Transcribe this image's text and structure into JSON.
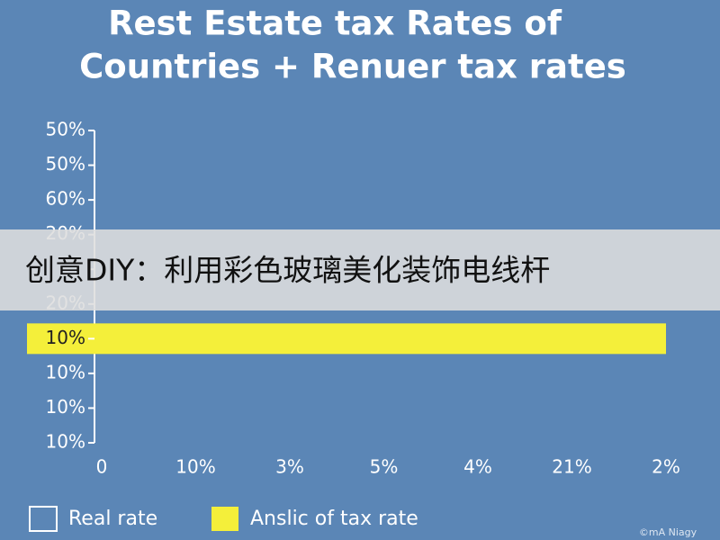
{
  "chart_data": {
    "type": "bar",
    "orientation": "horizontal",
    "title": [
      "Rest Estate tax Rates of",
      "Countries + Renuer tax rates"
    ],
    "categories": [
      "50%",
      "50%",
      "60%",
      "20%",
      null,
      "20%",
      "10%",
      "10%",
      "10%",
      "10%"
    ],
    "series": [
      {
        "name": "Real rate",
        "color": "#ffffff",
        "values": [
          null,
          null,
          null,
          null,
          null,
          null,
          null,
          null,
          null,
          null
        ]
      },
      {
        "name": "Anslic of tax rate",
        "color": "#f4ef3a",
        "values": [
          null,
          null,
          null,
          null,
          null,
          null,
          6,
          null,
          null,
          null
        ]
      }
    ],
    "xlim": [
      0,
      6
    ],
    "xticks": [
      0,
      {
        "value": 1,
        "label": "10%"
      },
      {
        "value": 2,
        "label": "3%"
      },
      {
        "value": 3,
        "label": "5%"
      },
      {
        "value": 4,
        "label": "4%"
      },
      {
        "value": 5,
        "label": "21%"
      },
      {
        "value": 6,
        "label": "2%"
      }
    ],
    "grid": false,
    "background": "#5b86b6",
    "banner": "创意DIY：利用彩色玻璃美化装饰电线杆",
    "watermark": "©mA Niagy"
  }
}
